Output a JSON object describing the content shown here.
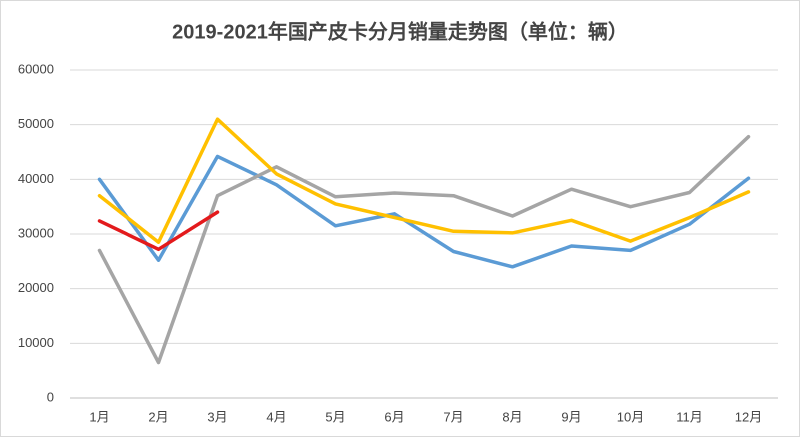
{
  "chart_data": {
    "type": "line",
    "title": "2019-2021年国产皮卡分月销量走势图（单位：辆）",
    "categories": [
      "1月",
      "2月",
      "3月",
      "4月",
      "5月",
      "6月",
      "7月",
      "8月",
      "9月",
      "10月",
      "11月",
      "12月"
    ],
    "series": [
      {
        "color": "#5b9bd5",
        "values": [
          40000,
          25200,
          44200,
          39000,
          31500,
          33700,
          26800,
          24000,
          27800,
          27000,
          31800,
          40200
        ]
      },
      {
        "color": "#a5a5a5",
        "values": [
          27000,
          6500,
          37000,
          42300,
          36800,
          37500,
          37000,
          33300,
          38200,
          35000,
          37600,
          47800
        ]
      },
      {
        "color": "#ffc000",
        "values": [
          37000,
          28500,
          51000,
          41000,
          35500,
          33000,
          30500,
          30200,
          32500,
          28700,
          33000,
          37700
        ]
      },
      {
        "color": "#e31a1c",
        "values": [
          32400,
          27200,
          34000,
          null,
          null,
          null,
          null,
          null,
          null,
          null,
          null,
          null
        ]
      }
    ],
    "ylim": [
      0,
      60000
    ],
    "yticks": [
      0,
      10000,
      20000,
      30000,
      40000,
      50000,
      60000
    ],
    "grid": true
  }
}
